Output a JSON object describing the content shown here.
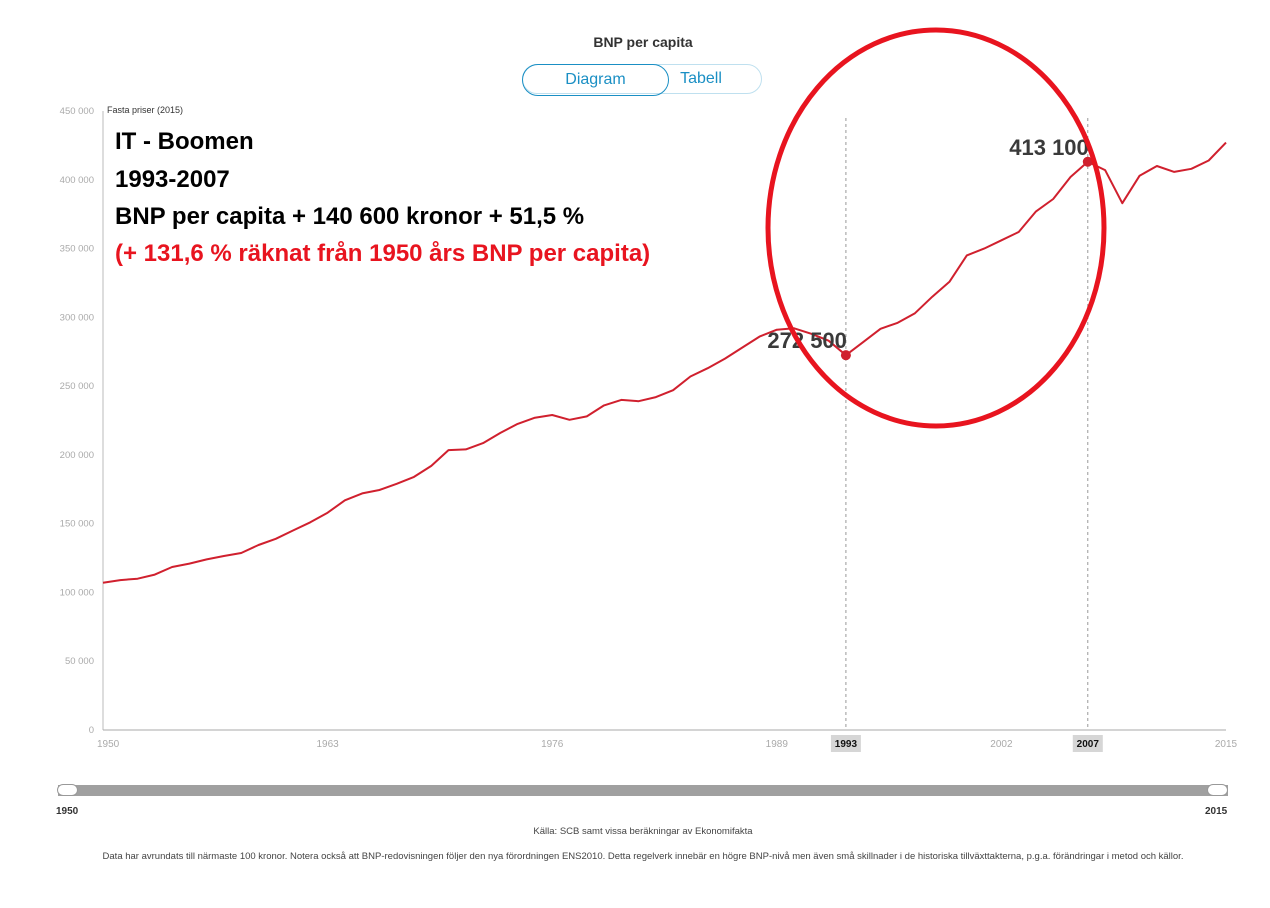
{
  "header": {
    "title": "BNP per capita"
  },
  "tabs": [
    {
      "label": "Diagram",
      "active": true
    },
    {
      "label": "Tabell",
      "active": false
    }
  ],
  "annotation": {
    "line1": "IT - Boomen",
    "line2": "1993-2007",
    "line3": "BNP per capita + 140 600 kronor + 51,5 %",
    "line4": "(+ 131,6 % räknat från 1950 års BNP per capita)"
  },
  "range_slider": {
    "start_label": "1950",
    "end_label": "2015",
    "start": 1950,
    "end": 2015
  },
  "footer": {
    "source": "Källa: SCB samt vissa beräkningar av Ekonomifakta",
    "note": "Data har avrundats till närmaste 100 kronor. Notera också att BNP-redovisningen följer den nya förordningen ENS2010. Detta regelverk innebär en högre BNP-nivå men även små skillnader i de historiska tillväxttakterna, p.g.a. förändringar i metod och källor."
  },
  "colors": {
    "line": "#d0202e",
    "accent": "#1a8fc4",
    "circle": "#e8141f"
  },
  "chart_data": {
    "type": "line",
    "title": "BNP per capita",
    "ylabel": "Fasta priser (2015)",
    "xlim": [
      1950,
      2015
    ],
    "ylim": [
      0,
      450000
    ],
    "yticks": [
      0,
      50000,
      100000,
      150000,
      200000,
      250000,
      300000,
      350000,
      400000,
      450000
    ],
    "ytick_labels": [
      "0",
      "50 000",
      "100 000",
      "150 000",
      "200 000",
      "250 000",
      "300 000",
      "350 000",
      "400 000",
      "450 000"
    ],
    "xticks": [
      1950,
      1963,
      1976,
      1989,
      1993,
      2002,
      2007,
      2015
    ],
    "xtick_labels": [
      "1950",
      "1963",
      "1976",
      "1989",
      "1993",
      "2002",
      "2007",
      "2015"
    ],
    "highlighted_years": [
      1993,
      2007
    ],
    "highlight_labels": [
      {
        "year": 1993,
        "value": 272500,
        "label": "272 500"
      },
      {
        "year": 2007,
        "value": 413100,
        "label": "413 100"
      }
    ],
    "x": [
      1950,
      1951,
      1952,
      1953,
      1954,
      1955,
      1956,
      1957,
      1958,
      1959,
      1960,
      1961,
      1962,
      1963,
      1964,
      1965,
      1966,
      1967,
      1968,
      1969,
      1970,
      1971,
      1972,
      1973,
      1974,
      1975,
      1976,
      1977,
      1978,
      1979,
      1980,
      1981,
      1982,
      1983,
      1984,
      1985,
      1986,
      1987,
      1988,
      1989,
      1990,
      1991,
      1992,
      1993,
      1994,
      1995,
      1996,
      1997,
      1998,
      1999,
      2000,
      2001,
      2002,
      2003,
      2004,
      2005,
      2006,
      2007,
      2008,
      2009,
      2010,
      2011,
      2012,
      2013,
      2014,
      2015
    ],
    "series": [
      {
        "name": "BNP per capita",
        "values": [
          107000,
          109000,
          110000,
          113000,
          118500,
          121000,
          124000,
          126500,
          128700,
          134500,
          139000,
          145000,
          151000,
          158000,
          167000,
          172000,
          174500,
          179000,
          184000,
          192000,
          203500,
          204000,
          208600,
          216000,
          222500,
          227000,
          229000,
          225500,
          228000,
          236000,
          240000,
          239000,
          242000,
          247000,
          257000,
          263000,
          270000,
          278000,
          286000,
          291000,
          292000,
          288000,
          283000,
          272500,
          282000,
          291700,
          296000,
          303000,
          315000,
          326000,
          345000,
          350000,
          356000,
          362000,
          377000,
          386000,
          402000,
          413100,
          407000,
          383000,
          403000,
          410000,
          405700,
          408000,
          414000,
          427000
        ]
      }
    ],
    "grid": false,
    "legend": "none"
  }
}
